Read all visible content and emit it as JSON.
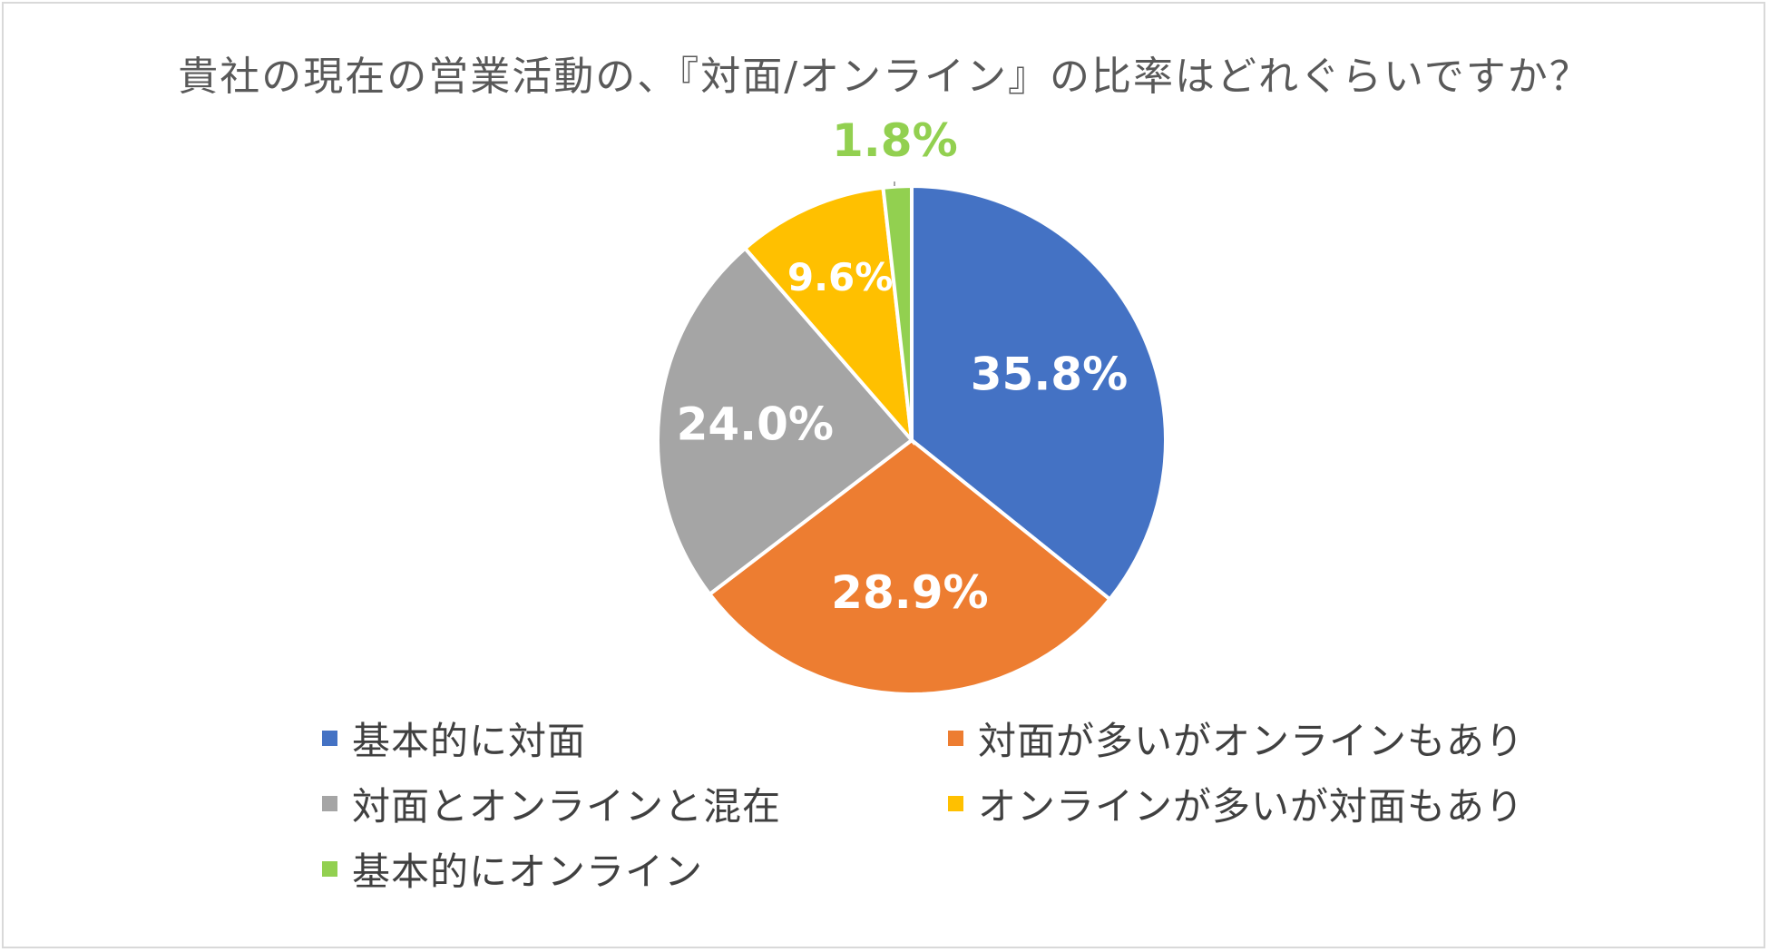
{
  "chart_data": {
    "type": "pie",
    "title": "貴社の現在の営業活動の、『対面/オンライン』の比率はどれぐらいですか？",
    "categories": [
      "基本的に対面",
      "対面が多いがオンラインもあり",
      "対面とオンラインと混在",
      "オンラインが多いが対面もあり",
      "基本的にオンライン"
    ],
    "values": [
      35.8,
      28.9,
      24.0,
      9.6,
      1.8
    ],
    "labels": [
      "35.8%",
      "28.9%",
      "24.0%",
      "9.6%",
      "1.8%"
    ],
    "colors": [
      "#4472C4",
      "#ED7D31",
      "#A5A5A5",
      "#FFC000",
      "#92D050"
    ],
    "label_colors": [
      "#ffffff",
      "#ffffff",
      "#ffffff",
      "#ffffff",
      "#92D050"
    ],
    "legend_position": "bottom"
  }
}
